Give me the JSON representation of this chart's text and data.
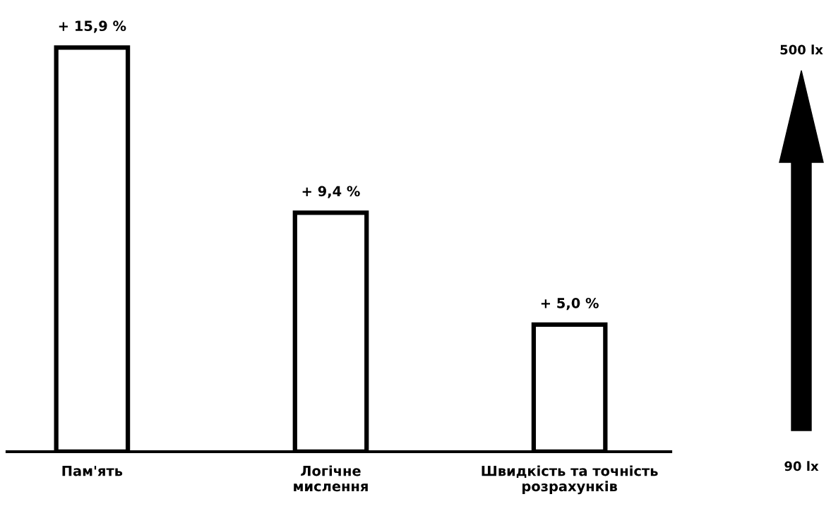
{
  "chart_data": {
    "type": "bar",
    "categories": [
      "Пам'ять",
      "Логічне\nмислення",
      "Швидкість та точність\nрозрахунків"
    ],
    "values": [
      15.9,
      9.4,
      5.0
    ],
    "value_labels": [
      "+ 15,9 %",
      "+ 9,4 %",
      "+ 5,0 %"
    ],
    "color": "#ffffff",
    "grid": false,
    "tick_labels": "x",
    "annotations": [
      "500 lx",
      "90 lx"
    ]
  }
}
